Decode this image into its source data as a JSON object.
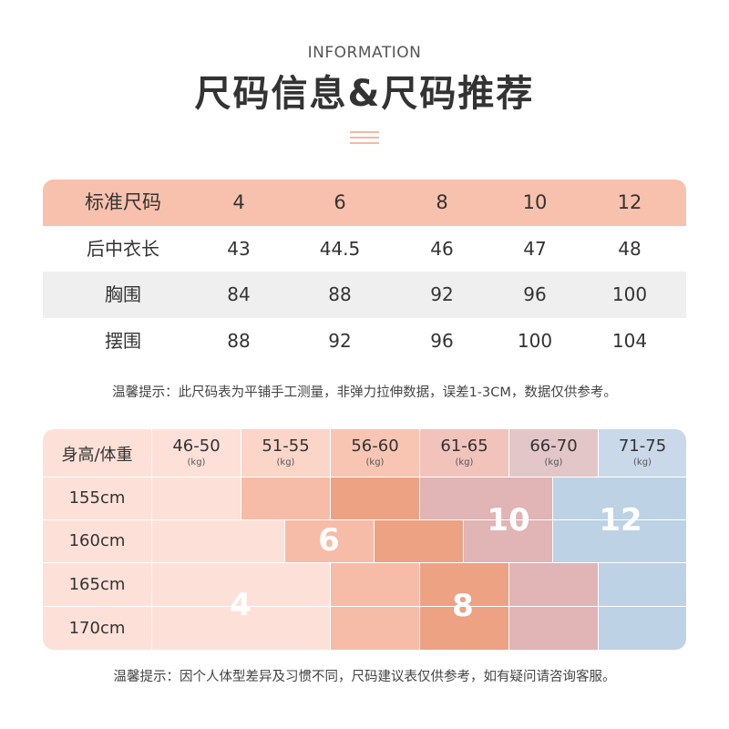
{
  "header": {
    "eyebrow": "INFORMATION",
    "title": "尺码信息&尺码推荐"
  },
  "size_table": {
    "rows": [
      [
        "标准尺码",
        "4",
        "6",
        "8",
        "10",
        "12"
      ],
      [
        "后中衣长",
        "43",
        "44.5",
        "46",
        "47",
        "48"
      ],
      [
        "胸围",
        "84",
        "88",
        "92",
        "96",
        "100"
      ],
      [
        "摆围",
        "88",
        "92",
        "96",
        "100",
        "104"
      ]
    ]
  },
  "note1": "温馨提示：此尺码表为平铺手工测量，非弹力拉伸数据，误差1-3CM，数据仅供参考。",
  "rec_table": {
    "corner": "身高/体重",
    "weights": [
      "46-50",
      "51-55",
      "56-60",
      "61-65",
      "66-70",
      "71-75"
    ],
    "weight_unit": "(kg)",
    "heights": [
      "155cm",
      "160cm",
      "165cm",
      "170cm"
    ],
    "size_labels": [
      "4",
      "6",
      "8",
      "10",
      "12"
    ]
  },
  "note2": "温馨提示：因个人体型差异及习惯不同，尺码建议表仅供参考，如有疑问请咨询客服。",
  "colors": {
    "header_row": "#f8c1ad",
    "size4": "#fde1d8",
    "size6": "#f7bca7",
    "size8": "#eda284",
    "size10": "#e1b4b5",
    "size12": "#bdd2e4"
  }
}
